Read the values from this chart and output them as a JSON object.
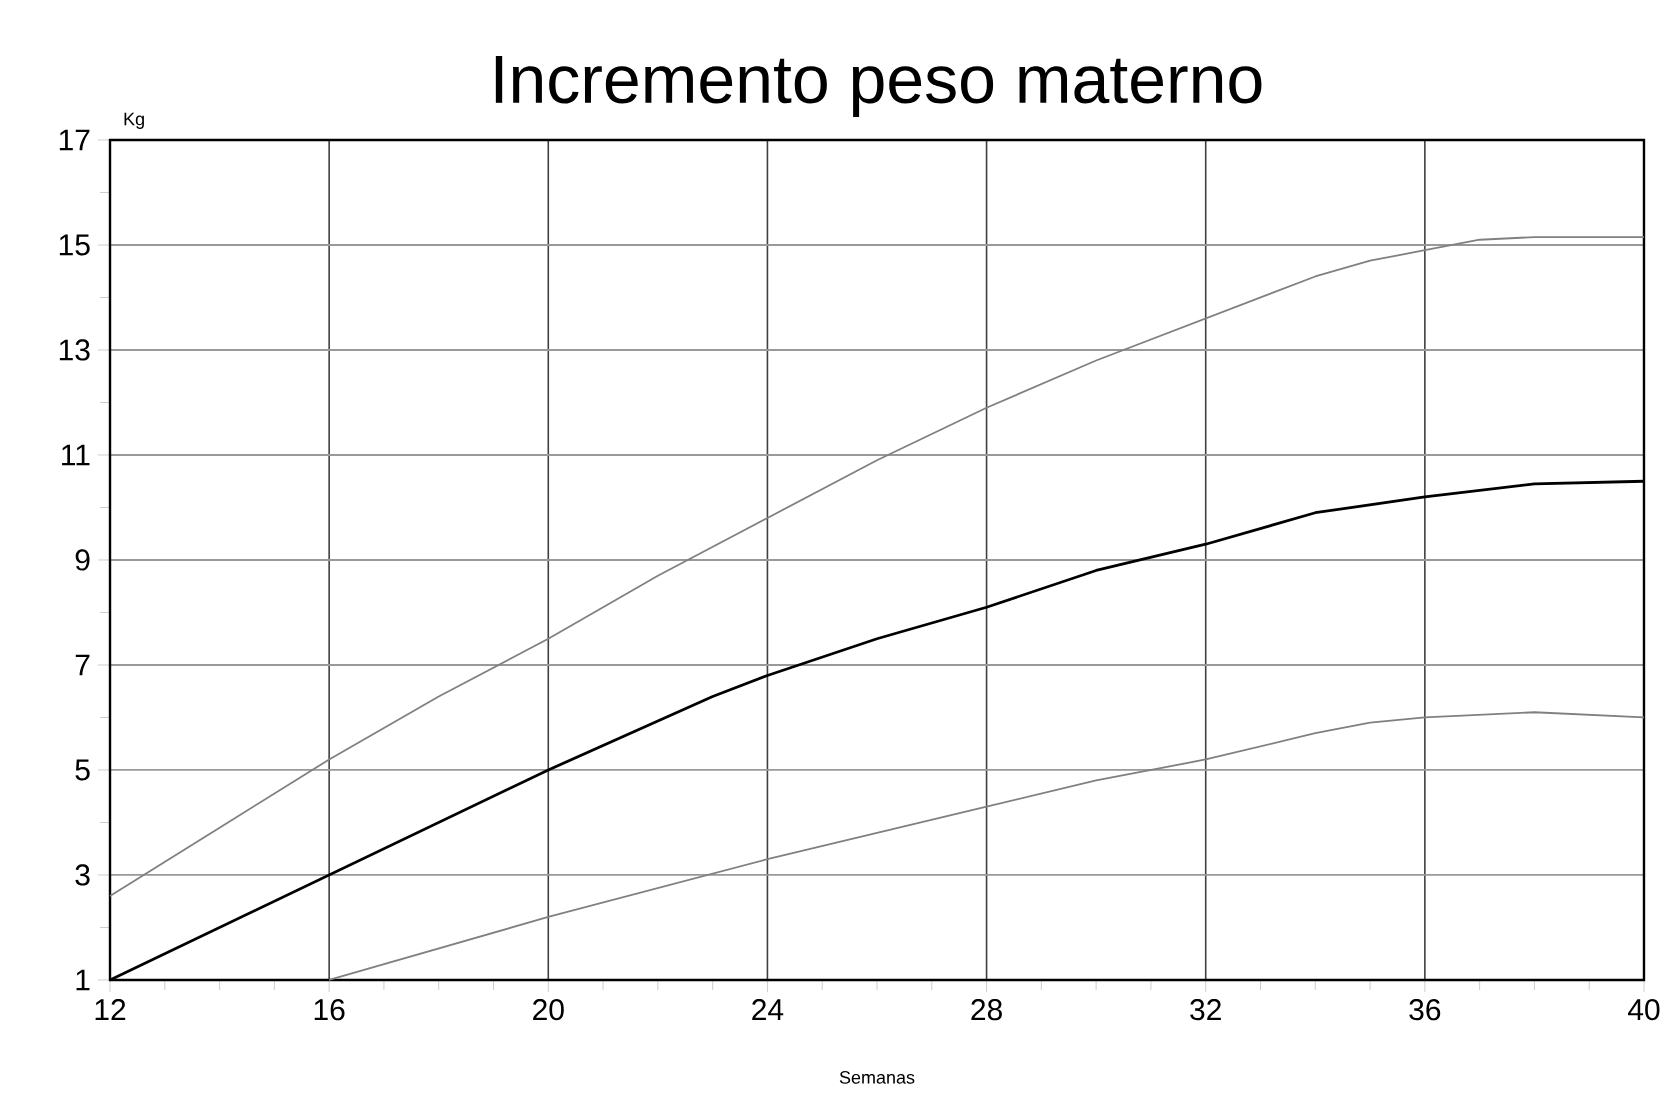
{
  "chart_data": {
    "type": "line",
    "title": "Incremento peso materno",
    "xlabel": "Semanas",
    "ylabel": "Kg",
    "xlim": [
      12,
      40
    ],
    "ylim": [
      1,
      17
    ],
    "xticks": [
      12,
      {
        "value": 13,
        "label": null
      },
      {
        "value": 14,
        "label": null
      },
      {
        "value": 15,
        "label": null
      },
      16,
      {
        "value": 17,
        "label": null
      },
      {
        "value": 18,
        "label": null
      },
      {
        "value": 19,
        "label": null
      },
      20,
      {
        "value": 21,
        "label": null
      },
      {
        "value": 22,
        "label": null
      },
      {
        "value": 23,
        "label": null
      },
      24,
      {
        "value": 25,
        "label": null
      },
      {
        "value": 26,
        "label": null
      },
      {
        "value": 27,
        "label": null
      },
      28,
      {
        "value": 29,
        "label": null
      },
      {
        "value": 30,
        "label": null
      },
      {
        "value": 31,
        "label": null
      },
      32,
      {
        "value": 33,
        "label": null
      },
      {
        "value": 34,
        "label": null
      },
      {
        "value": 35,
        "label": null
      },
      36,
      {
        "value": 37,
        "label": null
      },
      {
        "value": 38,
        "label": null
      },
      {
        "value": 39,
        "label": null
      },
      40
    ],
    "yticks": [
      1,
      {
        "value": 2,
        "label": null
      },
      3,
      {
        "value": 4,
        "label": null
      },
      5,
      {
        "value": 6,
        "label": null
      },
      7,
      {
        "value": 8,
        "label": null
      },
      9,
      {
        "value": 10,
        "label": null
      },
      11,
      {
        "value": 12,
        "label": null
      },
      13,
      {
        "value": 14,
        "label": null
      },
      15,
      {
        "value": 16,
        "label": null
      },
      17
    ],
    "grid": true,
    "marker": "none",
    "line_style": "solid",
    "series": [
      {
        "color": "#808080",
        "x": [
          12,
          14,
          16,
          18,
          20,
          22,
          24,
          26,
          28,
          30,
          32,
          34,
          35,
          36,
          37,
          38,
          40
        ],
        "values": [
          2.6,
          3.9,
          5.2,
          6.4,
          7.5,
          8.7,
          9.8,
          10.9,
          11.9,
          12.8,
          13.6,
          14.4,
          14.7,
          14.9,
          15.1,
          15.15,
          15.15
        ]
      },
      {
        "color": "#000000",
        "x": [
          12,
          16,
          20,
          23,
          24,
          26,
          28,
          30,
          32,
          34,
          36,
          38,
          40
        ],
        "values": [
          1,
          3,
          5,
          6.4,
          6.8,
          7.5,
          8.1,
          8.8,
          9.3,
          9.9,
          10.2,
          10.45,
          10.5
        ]
      },
      {
        "color": "#808080",
        "x": [
          16,
          20,
          24,
          26,
          28,
          30,
          32,
          34,
          35,
          36,
          38,
          40
        ],
        "values": [
          1,
          2.2,
          3.3,
          3.8,
          4.3,
          4.8,
          5.2,
          5.7,
          5.9,
          6.0,
          6.1,
          6.0
        ]
      }
    ]
  }
}
